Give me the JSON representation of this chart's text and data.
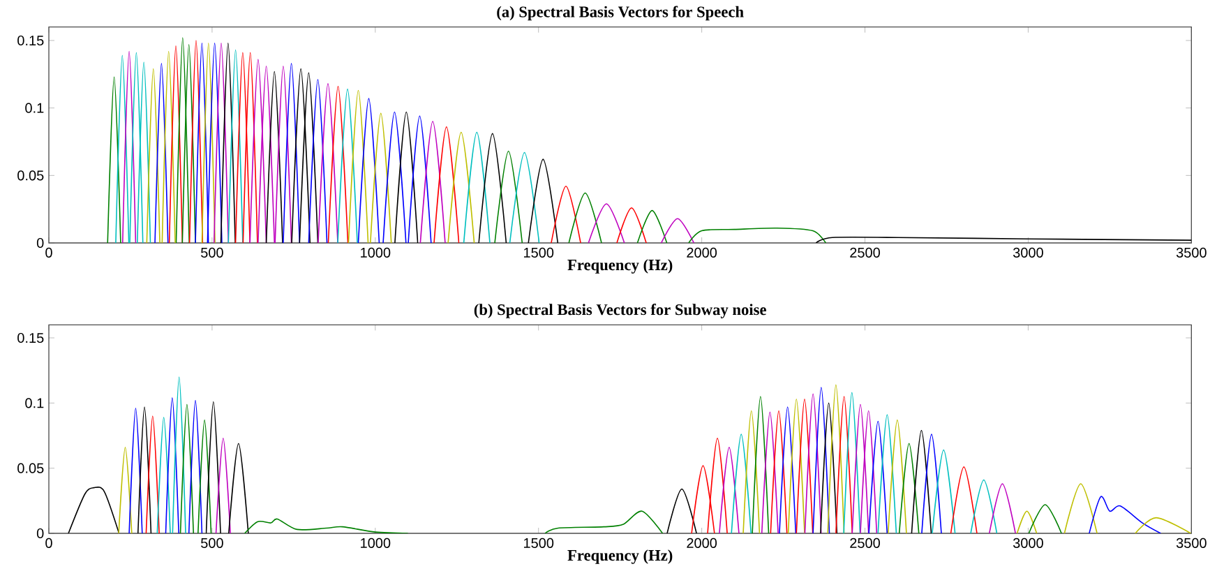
{
  "chart_data": [
    {
      "type": "line",
      "title": "(a) Spectral Basis Vectors for Speech",
      "xlabel": "Frequency (Hz)",
      "xlim": [
        0,
        3500
      ],
      "ylim": [
        0,
        0.16
      ],
      "xticks": [
        0,
        500,
        1000,
        1500,
        2000,
        2500,
        3000,
        3500
      ],
      "yticks": [
        0,
        0.05,
        0.1,
        0.15
      ],
      "series": [
        {
          "color": "#008000",
          "x": [
            180,
            200,
            220
          ],
          "values": [
            0,
            0.123,
            0
          ]
        },
        {
          "color": "#00bfbf",
          "x": [
            205,
            225,
            245
          ],
          "values": [
            0,
            0.139,
            0
          ]
        },
        {
          "color": "#bf00bf",
          "x": [
            226,
            246,
            266
          ],
          "values": [
            0,
            0.142,
            0
          ]
        },
        {
          "color": "#00bfbf",
          "x": [
            248,
            268,
            288
          ],
          "values": [
            0,
            0.141,
            0
          ]
        },
        {
          "color": "#00bfbf",
          "x": [
            271,
            291,
            311
          ],
          "values": [
            0,
            0.134,
            0
          ]
        },
        {
          "color": "#bfbf00",
          "x": [
            300,
            320,
            340
          ],
          "values": [
            0,
            0.129,
            0
          ]
        },
        {
          "color": "#0000ff",
          "x": [
            325,
            345,
            365
          ],
          "values": [
            0,
            0.133,
            0
          ]
        },
        {
          "color": "#bfbf00",
          "x": [
            347,
            367,
            387
          ],
          "values": [
            0,
            0.142,
            0
          ]
        },
        {
          "color": "#ff0000",
          "x": [
            369,
            389,
            409
          ],
          "values": [
            0,
            0.146,
            0
          ]
        },
        {
          "color": "#008000",
          "x": [
            390,
            410,
            430
          ],
          "values": [
            0,
            0.152,
            0
          ]
        },
        {
          "color": "#008000",
          "x": [
            409,
            429,
            449
          ],
          "values": [
            0,
            0.147,
            0
          ]
        },
        {
          "color": "#ff0000",
          "x": [
            431,
            451,
            471
          ],
          "values": [
            0,
            0.15,
            0
          ]
        },
        {
          "color": "#0000ff",
          "x": [
            449,
            469,
            489
          ],
          "values": [
            0,
            0.148,
            0
          ]
        },
        {
          "color": "#bfbf00",
          "x": [
            469,
            489,
            509
          ],
          "values": [
            0,
            0.148,
            0
          ]
        },
        {
          "color": "#0000ff",
          "x": [
            486,
            508,
            530
          ],
          "values": [
            0,
            0.148,
            0
          ]
        },
        {
          "color": "#bf00bf",
          "x": [
            506,
            528,
            550
          ],
          "values": [
            0,
            0.148,
            0
          ]
        },
        {
          "color": "#000000",
          "x": [
            527,
            549,
            571
          ],
          "values": [
            0,
            0.148,
            0
          ]
        },
        {
          "color": "#00bfbf",
          "x": [
            550,
            572,
            594
          ],
          "values": [
            0,
            0.143,
            0
          ]
        },
        {
          "color": "#ff0000",
          "x": [
            572,
            594,
            616
          ],
          "values": [
            0,
            0.141,
            0
          ]
        },
        {
          "color": "#ff0000",
          "x": [
            595,
            617,
            639
          ],
          "values": [
            0,
            0.141,
            0
          ]
        },
        {
          "color": "#bf00bf",
          "x": [
            616,
            641,
            666
          ],
          "values": [
            0,
            0.136,
            0
          ]
        },
        {
          "color": "#bf00bf",
          "x": [
            641,
            666,
            691
          ],
          "values": [
            0,
            0.131,
            0
          ]
        },
        {
          "color": "#000000",
          "x": [
            666,
            691,
            716
          ],
          "values": [
            0,
            0.127,
            0
          ]
        },
        {
          "color": "#bf00bf",
          "x": [
            693,
            718,
            743
          ],
          "values": [
            0,
            0.131,
            0
          ]
        },
        {
          "color": "#0000ff",
          "x": [
            718,
            743,
            768
          ],
          "values": [
            0,
            0.133,
            0
          ]
        },
        {
          "color": "#000000",
          "x": [
            744,
            772,
            800
          ],
          "values": [
            0,
            0.129,
            0
          ]
        },
        {
          "color": "#000000",
          "x": [
            768,
            796,
            824
          ],
          "values": [
            0,
            0.126,
            0
          ]
        },
        {
          "color": "#0000ff",
          "x": [
            796,
            824,
            852
          ],
          "values": [
            0,
            0.121,
            0
          ]
        },
        {
          "color": "#bf00bf",
          "x": [
            825,
            855,
            885
          ],
          "values": [
            0,
            0.118,
            0
          ]
        },
        {
          "color": "#ff0000",
          "x": [
            856,
            886,
            916
          ],
          "values": [
            0,
            0.116,
            0
          ]
        },
        {
          "color": "#00bfbf",
          "x": [
            885,
            915,
            945
          ],
          "values": [
            0,
            0.114,
            0
          ]
        },
        {
          "color": "#bfbf00",
          "x": [
            918,
            948,
            978
          ],
          "values": [
            0,
            0.113,
            0
          ]
        },
        {
          "color": "#0000ff",
          "x": [
            948,
            980,
            1012
          ],
          "values": [
            0,
            0.107,
            0
          ]
        },
        {
          "color": "#bfbf00",
          "x": [
            985,
            1017,
            1049
          ],
          "values": [
            0,
            0.096,
            0
          ]
        },
        {
          "color": "#0000ff",
          "x": [
            1024,
            1059,
            1094
          ],
          "values": [
            0,
            0.097,
            0
          ]
        },
        {
          "color": "#000000",
          "x": [
            1060,
            1095,
            1130
          ],
          "values": [
            0,
            0.097,
            0
          ]
        },
        {
          "color": "#0000ff",
          "x": [
            1101,
            1136,
            1171
          ],
          "values": [
            0,
            0.094,
            0
          ]
        },
        {
          "color": "#bf00bf",
          "x": [
            1138,
            1176,
            1214
          ],
          "values": [
            0,
            0.09,
            0
          ]
        },
        {
          "color": "#ff0000",
          "x": [
            1180,
            1218,
            1256
          ],
          "values": [
            0,
            0.086,
            0
          ]
        },
        {
          "color": "#bfbf00",
          "x": [
            1223,
            1263,
            1303
          ],
          "values": [
            0,
            0.082,
            0
          ]
        },
        {
          "color": "#00bfbf",
          "x": [
            1271,
            1311,
            1351
          ],
          "values": [
            0,
            0.082,
            0
          ]
        },
        {
          "color": "#000000",
          "x": [
            1317,
            1359,
            1401
          ],
          "values": [
            0,
            0.081,
            0
          ]
        },
        {
          "color": "#008000",
          "x": [
            1366,
            1408,
            1450
          ],
          "values": [
            0,
            0.068,
            0
          ]
        },
        {
          "color": "#00bfbf",
          "x": [
            1412,
            1457,
            1502
          ],
          "values": [
            0,
            0.067,
            0
          ]
        },
        {
          "color": "#000000",
          "x": [
            1469,
            1514,
            1559
          ],
          "values": [
            0,
            0.062,
            0
          ]
        },
        {
          "color": "#ff0000",
          "x": [
            1539,
            1584,
            1629
          ],
          "values": [
            0,
            0.042,
            0
          ]
        },
        {
          "color": "#008000",
          "x": [
            1593,
            1643,
            1693
          ],
          "values": [
            0,
            0.037,
            0
          ]
        },
        {
          "color": "#bf00bf",
          "x": [
            1653,
            1708,
            1763
          ],
          "values": [
            0,
            0.029,
            0
          ]
        },
        {
          "color": "#ff0000",
          "x": [
            1740,
            1785,
            1830
          ],
          "values": [
            0,
            0.026,
            0
          ]
        },
        {
          "color": "#008000",
          "x": [
            1803,
            1848,
            1893
          ],
          "values": [
            0,
            0.024,
            0
          ]
        },
        {
          "color": "#bf00bf",
          "x": [
            1876,
            1926,
            1976
          ],
          "values": [
            0,
            0.018,
            0
          ]
        },
        {
          "color": "#008000",
          "x": [
            1960,
            2000,
            2100,
            2230,
            2340,
            2380
          ],
          "values": [
            0,
            0.009,
            0.01,
            0.011,
            0.009,
            0
          ]
        },
        {
          "color": "#000000",
          "x": [
            2350,
            2400,
            2600,
            3000,
            3500
          ],
          "values": [
            0,
            0.004,
            0.004,
            0.003,
            0.002
          ]
        }
      ]
    },
    {
      "type": "line",
      "title": "(b) Spectral Basis Vectors for Subway noise",
      "xlabel": "Frequency (Hz)",
      "xlim": [
        0,
        3500
      ],
      "ylim": [
        0,
        0.16
      ],
      "xticks": [
        0,
        500,
        1000,
        1500,
        2000,
        2500,
        3000,
        3500
      ],
      "yticks": [
        0,
        0.05,
        0.1,
        0.15
      ],
      "series": [
        {
          "color": "#000000",
          "x": [
            60,
            110,
            138,
            170,
            215
          ],
          "values": [
            0,
            0.03,
            0.035,
            0.032,
            0
          ]
        },
        {
          "color": "#bfbf00",
          "x": [
            214,
            234,
            254
          ],
          "values": [
            0,
            0.066,
            0
          ]
        },
        {
          "color": "#0000ff",
          "x": [
            246,
            266,
            286
          ],
          "values": [
            0,
            0.096,
            0
          ]
        },
        {
          "color": "#000000",
          "x": [
            273,
            293,
            313
          ],
          "values": [
            0,
            0.097,
            0
          ]
        },
        {
          "color": "#ff0000",
          "x": [
            298,
            318,
            338
          ],
          "values": [
            0,
            0.09,
            0
          ]
        },
        {
          "color": "#00bfbf",
          "x": [
            332,
            352,
            372
          ],
          "values": [
            0,
            0.089,
            0
          ]
        },
        {
          "color": "#0000ff",
          "x": [
            358,
            378,
            398
          ],
          "values": [
            0,
            0.104,
            0
          ]
        },
        {
          "color": "#00bfbf",
          "x": [
            379,
            399,
            419
          ],
          "values": [
            0,
            0.12,
            0
          ]
        },
        {
          "color": "#008000",
          "x": [
            403,
            423,
            443
          ],
          "values": [
            0,
            0.099,
            0
          ]
        },
        {
          "color": "#0000ff",
          "x": [
            429,
            449,
            469
          ],
          "values": [
            0,
            0.102,
            0
          ]
        },
        {
          "color": "#008000",
          "x": [
            457,
            477,
            497
          ],
          "values": [
            0,
            0.087,
            0
          ]
        },
        {
          "color": "#000000",
          "x": [
            482,
            504,
            526
          ],
          "values": [
            0,
            0.101,
            0
          ]
        },
        {
          "color": "#bf00bf",
          "x": [
            512,
            534,
            556
          ],
          "values": [
            0,
            0.073,
            0
          ]
        },
        {
          "color": "#000000",
          "x": [
            551,
            581,
            611
          ],
          "values": [
            0,
            0.069,
            0
          ]
        },
        {
          "color": "#008000",
          "x": [
            600,
            640,
            680,
            700,
            760,
            850,
            900,
            1000,
            1100
          ],
          "values": [
            0,
            0.009,
            0.008,
            0.011,
            0.003,
            0.004,
            0.005,
            0.001,
            0
          ]
        },
        {
          "color": "#008000",
          "x": [
            1520,
            1560,
            1700,
            1760,
            1817,
            1880
          ],
          "values": [
            0,
            0.004,
            0.005,
            0.007,
            0.017,
            0
          ]
        },
        {
          "color": "#000000",
          "x": [
            1894,
            1939,
            1984
          ],
          "values": [
            0,
            0.034,
            0
          ]
        },
        {
          "color": "#ff0000",
          "x": [
            1969,
            2004,
            2039
          ],
          "values": [
            0,
            0.052,
            0
          ]
        },
        {
          "color": "#ff0000",
          "x": [
            2018,
            2048,
            2078
          ],
          "values": [
            0,
            0.073,
            0
          ]
        },
        {
          "color": "#bf00bf",
          "x": [
            2054,
            2084,
            2114
          ],
          "values": [
            0,
            0.066,
            0
          ]
        },
        {
          "color": "#00bfbf",
          "x": [
            2091,
            2121,
            2151
          ],
          "values": [
            0,
            0.076,
            0
          ]
        },
        {
          "color": "#bfbf00",
          "x": [
            2127,
            2152,
            2177
          ],
          "values": [
            0,
            0.094,
            0
          ]
        },
        {
          "color": "#008000",
          "x": [
            2155,
            2180,
            2205
          ],
          "values": [
            0,
            0.105,
            0
          ]
        },
        {
          "color": "#bf00bf",
          "x": [
            2184,
            2209,
            2234
          ],
          "values": [
            0,
            0.093,
            0
          ]
        },
        {
          "color": "#ff0000",
          "x": [
            2211,
            2236,
            2261
          ],
          "values": [
            0,
            0.094,
            0
          ]
        },
        {
          "color": "#0000ff",
          "x": [
            2238,
            2263,
            2288
          ],
          "values": [
            0,
            0.097,
            0
          ]
        },
        {
          "color": "#bfbf00",
          "x": [
            2265,
            2290,
            2315
          ],
          "values": [
            0,
            0.103,
            0
          ]
        },
        {
          "color": "#ff0000",
          "x": [
            2290,
            2315,
            2340
          ],
          "values": [
            0,
            0.103,
            0
          ]
        },
        {
          "color": "#bf00bf",
          "x": [
            2316,
            2341,
            2366
          ],
          "values": [
            0,
            0.107,
            0
          ]
        },
        {
          "color": "#0000ff",
          "x": [
            2341,
            2366,
            2391
          ],
          "values": [
            0,
            0.112,
            0
          ]
        },
        {
          "color": "#000000",
          "x": [
            2364,
            2389,
            2414
          ],
          "values": [
            0,
            0.1,
            0
          ]
        },
        {
          "color": "#bfbf00",
          "x": [
            2386,
            2411,
            2436
          ],
          "values": [
            0,
            0.114,
            0
          ]
        },
        {
          "color": "#ff0000",
          "x": [
            2411,
            2436,
            2461
          ],
          "values": [
            0,
            0.105,
            0
          ]
        },
        {
          "color": "#00bfbf",
          "x": [
            2435,
            2460,
            2485
          ],
          "values": [
            0,
            0.108,
            0
          ]
        },
        {
          "color": "#bf00bf",
          "x": [
            2461,
            2486,
            2511
          ],
          "values": [
            0,
            0.099,
            0
          ]
        },
        {
          "color": "#bf00bf",
          "x": [
            2486,
            2511,
            2536
          ],
          "values": [
            0,
            0.094,
            0
          ]
        },
        {
          "color": "#0000ff",
          "x": [
            2512,
            2540,
            2568
          ],
          "values": [
            0,
            0.086,
            0
          ]
        },
        {
          "color": "#00bfbf",
          "x": [
            2540,
            2568,
            2596
          ],
          "values": [
            0,
            0.091,
            0
          ]
        },
        {
          "color": "#bfbf00",
          "x": [
            2571,
            2599,
            2627
          ],
          "values": [
            0,
            0.087,
            0
          ]
        },
        {
          "color": "#008000",
          "x": [
            2605,
            2635,
            2665
          ],
          "values": [
            0,
            0.069,
            0
          ]
        },
        {
          "color": "#000000",
          "x": [
            2643,
            2673,
            2703
          ],
          "values": [
            0,
            0.079,
            0
          ]
        },
        {
          "color": "#0000ff",
          "x": [
            2674,
            2704,
            2734
          ],
          "values": [
            0,
            0.076,
            0
          ]
        },
        {
          "color": "#00bfbf",
          "x": [
            2706,
            2741,
            2776
          ],
          "values": [
            0,
            0.064,
            0
          ]
        },
        {
          "color": "#ff0000",
          "x": [
            2763,
            2803,
            2843
          ],
          "values": [
            0,
            0.051,
            0
          ]
        },
        {
          "color": "#00bfbf",
          "x": [
            2824,
            2864,
            2904
          ],
          "values": [
            0,
            0.041,
            0
          ]
        },
        {
          "color": "#bf00bf",
          "x": [
            2881,
            2921,
            2961
          ],
          "values": [
            0,
            0.038,
            0
          ]
        },
        {
          "color": "#bfbf00",
          "x": [
            2966,
            2996,
            3026
          ],
          "values": [
            0,
            0.017,
            0
          ]
        },
        {
          "color": "#008000",
          "x": [
            3002,
            3052,
            3102
          ],
          "values": [
            0,
            0.022,
            0
          ]
        },
        {
          "color": "#bfbf00",
          "x": [
            3111,
            3161,
            3211
          ],
          "values": [
            0,
            0.038,
            0
          ]
        },
        {
          "color": "#0000ff",
          "x": [
            3187,
            3222,
            3250,
            3282,
            3350,
            3406
          ],
          "values": [
            0,
            0.028,
            0.017,
            0.021,
            0.008,
            0
          ]
        },
        {
          "color": "#bfbf00",
          "x": [
            3328,
            3392,
            3498
          ],
          "values": [
            0,
            0.012,
            0
          ]
        }
      ]
    }
  ]
}
